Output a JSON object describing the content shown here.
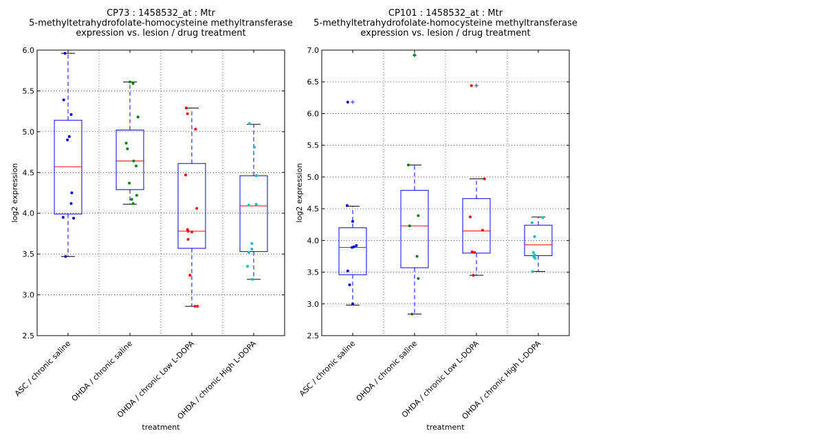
{
  "chart_data": [
    {
      "type": "box",
      "title": [
        "CP73 : 1458532_at : Mtr",
        "5-methyltetrahydrofolate-homocysteine methyltransferase",
        "expression vs. lesion / drug treatment"
      ],
      "xlabel": "treatment",
      "ylabel": "log2 expression",
      "ylim": [
        2.5,
        6.0
      ],
      "yticks": [
        "2.5",
        "3.0",
        "3.5",
        "4.0",
        "4.5",
        "5.0",
        "5.5",
        "6.0"
      ],
      "grid": true,
      "categories": [
        "ASC / chronic saline",
        "OHDA / chronic saline",
        "OHDA / chronic Low L-DOPA",
        "OHDA / chronic High L-DOPA"
      ],
      "boxes": [
        {
          "whisker_low": 3.47,
          "q1": 3.99,
          "median": 4.57,
          "q3": 5.14,
          "whisker_high": 5.96,
          "outliers": []
        },
        {
          "whisker_low": 4.11,
          "q1": 4.29,
          "median": 4.64,
          "q3": 5.02,
          "whisker_high": 5.61,
          "outliers": []
        },
        {
          "whisker_low": 2.86,
          "q1": 3.57,
          "median": 3.78,
          "q3": 4.61,
          "whisker_high": 5.29,
          "outliers": []
        },
        {
          "whisker_low": 3.19,
          "q1": 3.53,
          "median": 4.09,
          "q3": 4.46,
          "whisker_high": 5.09,
          "outliers": []
        }
      ],
      "points": [
        [
          [
            -0.05,
            5.96
          ],
          [
            -0.07,
            5.39
          ],
          [
            0.05,
            5.21
          ],
          [
            0.02,
            4.94
          ],
          [
            -0.01,
            4.9
          ],
          [
            0.06,
            4.25
          ],
          [
            0.05,
            4.12
          ],
          [
            -0.08,
            3.95
          ],
          [
            0.09,
            3.94
          ],
          [
            -0.04,
            3.47
          ]
        ],
        [
          [
            0.0,
            5.61
          ],
          [
            0.05,
            5.59
          ],
          [
            0.13,
            5.18
          ],
          [
            -0.06,
            4.86
          ],
          [
            -0.04,
            4.79
          ],
          [
            0.06,
            4.64
          ],
          [
            0.1,
            4.58
          ],
          [
            -0.01,
            4.37
          ],
          [
            0.11,
            4.22
          ],
          [
            0.03,
            4.17
          ],
          [
            0.05,
            4.12
          ]
        ],
        [
          [
            -0.09,
            5.29
          ],
          [
            -0.07,
            5.22
          ],
          [
            0.06,
            5.03
          ],
          [
            -0.1,
            4.47
          ],
          [
            0.08,
            4.06
          ],
          [
            -0.07,
            3.8
          ],
          [
            -0.06,
            3.78
          ],
          [
            0.0,
            3.77
          ],
          [
            -0.06,
            3.68
          ],
          [
            -0.03,
            3.24
          ],
          [
            0.05,
            2.86
          ],
          [
            0.09,
            2.86
          ]
        ],
        [
          [
            -0.07,
            5.1
          ],
          [
            0.01,
            4.81
          ],
          [
            -0.08,
            4.1
          ],
          [
            0.04,
            4.46
          ],
          [
            0.04,
            4.11
          ],
          [
            -0.03,
            3.63
          ],
          [
            -0.03,
            3.56
          ],
          [
            -0.08,
            3.52
          ],
          [
            -0.1,
            3.35
          ],
          [
            -0.02,
            3.19
          ]
        ]
      ],
      "colors": [
        "#0000cc",
        "#007f00",
        "#ff0000",
        "#00bfbf"
      ]
    },
    {
      "type": "box",
      "title": [
        "CP101 : 1458532_at : Mtr",
        "5-methyltetrahydrofolate-homocysteine methyltransferase",
        "expression vs. lesion / drug treatment"
      ],
      "xlabel": "treatment",
      "ylabel": "log2 expression",
      "ylim": [
        2.5,
        7.0
      ],
      "yticks": [
        "2.5",
        "3.0",
        "3.5",
        "4.0",
        "4.5",
        "5.0",
        "5.5",
        "6.0",
        "6.5",
        "7.0"
      ],
      "grid": true,
      "categories": [
        "ASC / chronic saline",
        "OHDA / chronic saline",
        "OHDA / chronic Low L-DOPA",
        "OHDA / chronic High L-DOPA"
      ],
      "boxes": [
        {
          "whisker_low": 2.98,
          "q1": 3.46,
          "median": 3.89,
          "q3": 4.2,
          "whisker_high": 4.54,
          "outliers": [
            6.18
          ]
        },
        {
          "whisker_low": 2.84,
          "q1": 3.57,
          "median": 4.23,
          "q3": 4.79,
          "whisker_high": 5.19,
          "outliers": [
            6.92
          ]
        },
        {
          "whisker_low": 3.45,
          "q1": 3.8,
          "median": 4.15,
          "q3": 4.66,
          "whisker_high": 4.97,
          "outliers": [
            6.44
          ]
        },
        {
          "whisker_low": 3.51,
          "q1": 3.76,
          "median": 3.93,
          "q3": 4.24,
          "whisker_high": 4.37,
          "outliers": []
        }
      ],
      "points": [
        [
          [
            -0.08,
            6.18
          ],
          [
            -0.09,
            4.55
          ],
          [
            0.0,
            4.3
          ],
          [
            0.06,
            3.92
          ],
          [
            0.02,
            3.9
          ],
          [
            -0.01,
            3.89
          ],
          [
            -0.08,
            3.52
          ],
          [
            -0.05,
            3.3
          ],
          [
            0.0,
            3.0
          ]
        ],
        [
          [
            0.0,
            6.92
          ],
          [
            -0.1,
            5.19
          ],
          [
            0.06,
            4.39
          ],
          [
            -0.08,
            4.23
          ],
          [
            0.04,
            3.75
          ],
          [
            0.06,
            3.4
          ],
          [
            -0.04,
            2.84
          ]
        ],
        [
          [
            -0.08,
            6.44
          ],
          [
            0.13,
            4.97
          ],
          [
            -0.1,
            4.37
          ],
          [
            0.1,
            4.16
          ],
          [
            -0.07,
            3.82
          ],
          [
            -0.03,
            3.81
          ],
          [
            -0.05,
            3.45
          ]
        ],
        [
          [
            -0.1,
            4.28
          ],
          [
            0.07,
            4.36
          ],
          [
            -0.06,
            4.06
          ],
          [
            -0.08,
            3.81
          ],
          [
            -0.07,
            3.74
          ],
          [
            -0.06,
            3.77
          ],
          [
            -0.05,
            3.72
          ],
          [
            -0.09,
            3.51
          ]
        ]
      ],
      "colors": [
        "#0000cc",
        "#007f00",
        "#ff0000",
        "#00bfbf"
      ]
    }
  ]
}
